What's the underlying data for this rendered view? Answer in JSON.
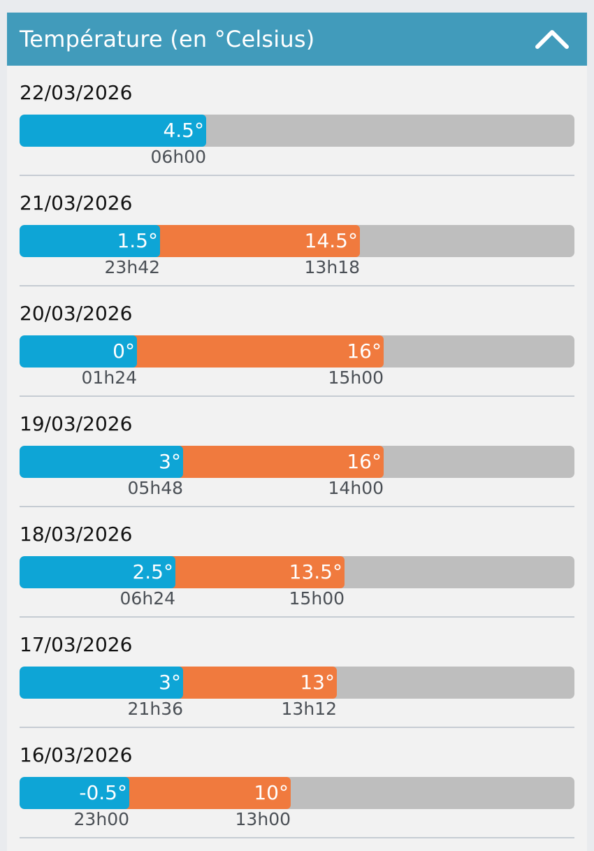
{
  "header": {
    "title": "Température (en °Celsius)",
    "collapse_icon": "chevron-up-icon"
  },
  "colors": {
    "header_bg": "#419bbb",
    "min_bar": "#0ea5d6",
    "max_bar": "#f07a3e",
    "track": "#bebebe"
  },
  "scale": {
    "min_temp": -7.6,
    "max_temp": 28.4
  },
  "days": [
    {
      "date": "22/03/2026",
      "min_value": 4.5,
      "min_label": "4.5°",
      "min_time": "06h00",
      "max_value": null,
      "max_label": "",
      "max_time": ""
    },
    {
      "date": "21/03/2026",
      "min_value": 1.5,
      "min_label": "1.5°",
      "min_time": "23h42",
      "max_value": 14.5,
      "max_label": "14.5°",
      "max_time": "13h18"
    },
    {
      "date": "20/03/2026",
      "min_value": 0,
      "min_label": "0°",
      "min_time": "01h24",
      "max_value": 16,
      "max_label": "16°",
      "max_time": "15h00"
    },
    {
      "date": "19/03/2026",
      "min_value": 3,
      "min_label": "3°",
      "min_time": "05h48",
      "max_value": 16,
      "max_label": "16°",
      "max_time": "14h00"
    },
    {
      "date": "18/03/2026",
      "min_value": 2.5,
      "min_label": "2.5°",
      "min_time": "06h24",
      "max_value": 13.5,
      "max_label": "13.5°",
      "max_time": "15h00"
    },
    {
      "date": "17/03/2026",
      "min_value": 3,
      "min_label": "3°",
      "min_time": "21h36",
      "max_value": 13,
      "max_label": "13°",
      "max_time": "13h12"
    },
    {
      "date": "16/03/2026",
      "min_value": -0.5,
      "min_label": "-0.5°",
      "min_time": "23h00",
      "max_value": 10,
      "max_label": "10°",
      "max_time": "13h00"
    }
  ]
}
